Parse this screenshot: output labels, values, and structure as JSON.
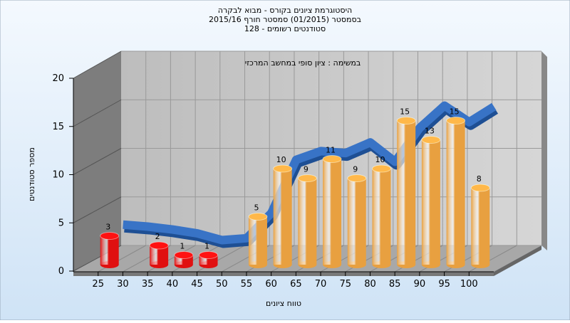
{
  "chart_data": {
    "type": "bar3d",
    "title": "היסטוגרמת ציונים בקורס - מבוא לבקרה",
    "subtitle": "בסמסטר  (01/2015)  סמסטר חורף 2015/16",
    "subtitle2": "סטודנטים רשומים - 128",
    "annotation": "במשימה : ציון סופי במחשב המרכזי",
    "x_label": "טווח ציונים",
    "y_label": "מספר סטודנטים",
    "x": [
      25,
      30,
      35,
      40,
      45,
      50,
      55,
      60,
      65,
      70,
      75,
      80,
      85,
      90,
      95,
      100
    ],
    "series": [
      {
        "type": "bar",
        "values": [
          3,
          null,
          2,
          1,
          1,
          null,
          5,
          10,
          9,
          11,
          9,
          10,
          15,
          13,
          15,
          8
        ],
        "colors": [
          "#e01010",
          "#e01010",
          "#e01010",
          "#e01010",
          "#e01010",
          "#e01010",
          "#e8a040",
          "#e8a040",
          "#e8a040",
          "#e8a040",
          "#e8a040",
          "#e8a040",
          "#e8a040",
          "#e8a040",
          "#e8a040",
          "#e8a040"
        ]
      },
      {
        "type": "line",
        "color": "#3873c6",
        "values": [
          3.4,
          3.2,
          2.9,
          2.5,
          1.8,
          2.0,
          4.6,
          10.1,
          11,
          10.8,
          11.9,
          9.9,
          13.4,
          15.7,
          14,
          15.6
        ]
      }
    ],
    "xlim": [
      20,
      105
    ],
    "ylim": [
      0,
      20
    ],
    "xticks": [
      25,
      30,
      35,
      40,
      45,
      50,
      55,
      60,
      65,
      70,
      75,
      80,
      85,
      90,
      95,
      100
    ],
    "yticks": [
      0,
      5,
      10,
      15,
      20
    ],
    "grid": true
  }
}
